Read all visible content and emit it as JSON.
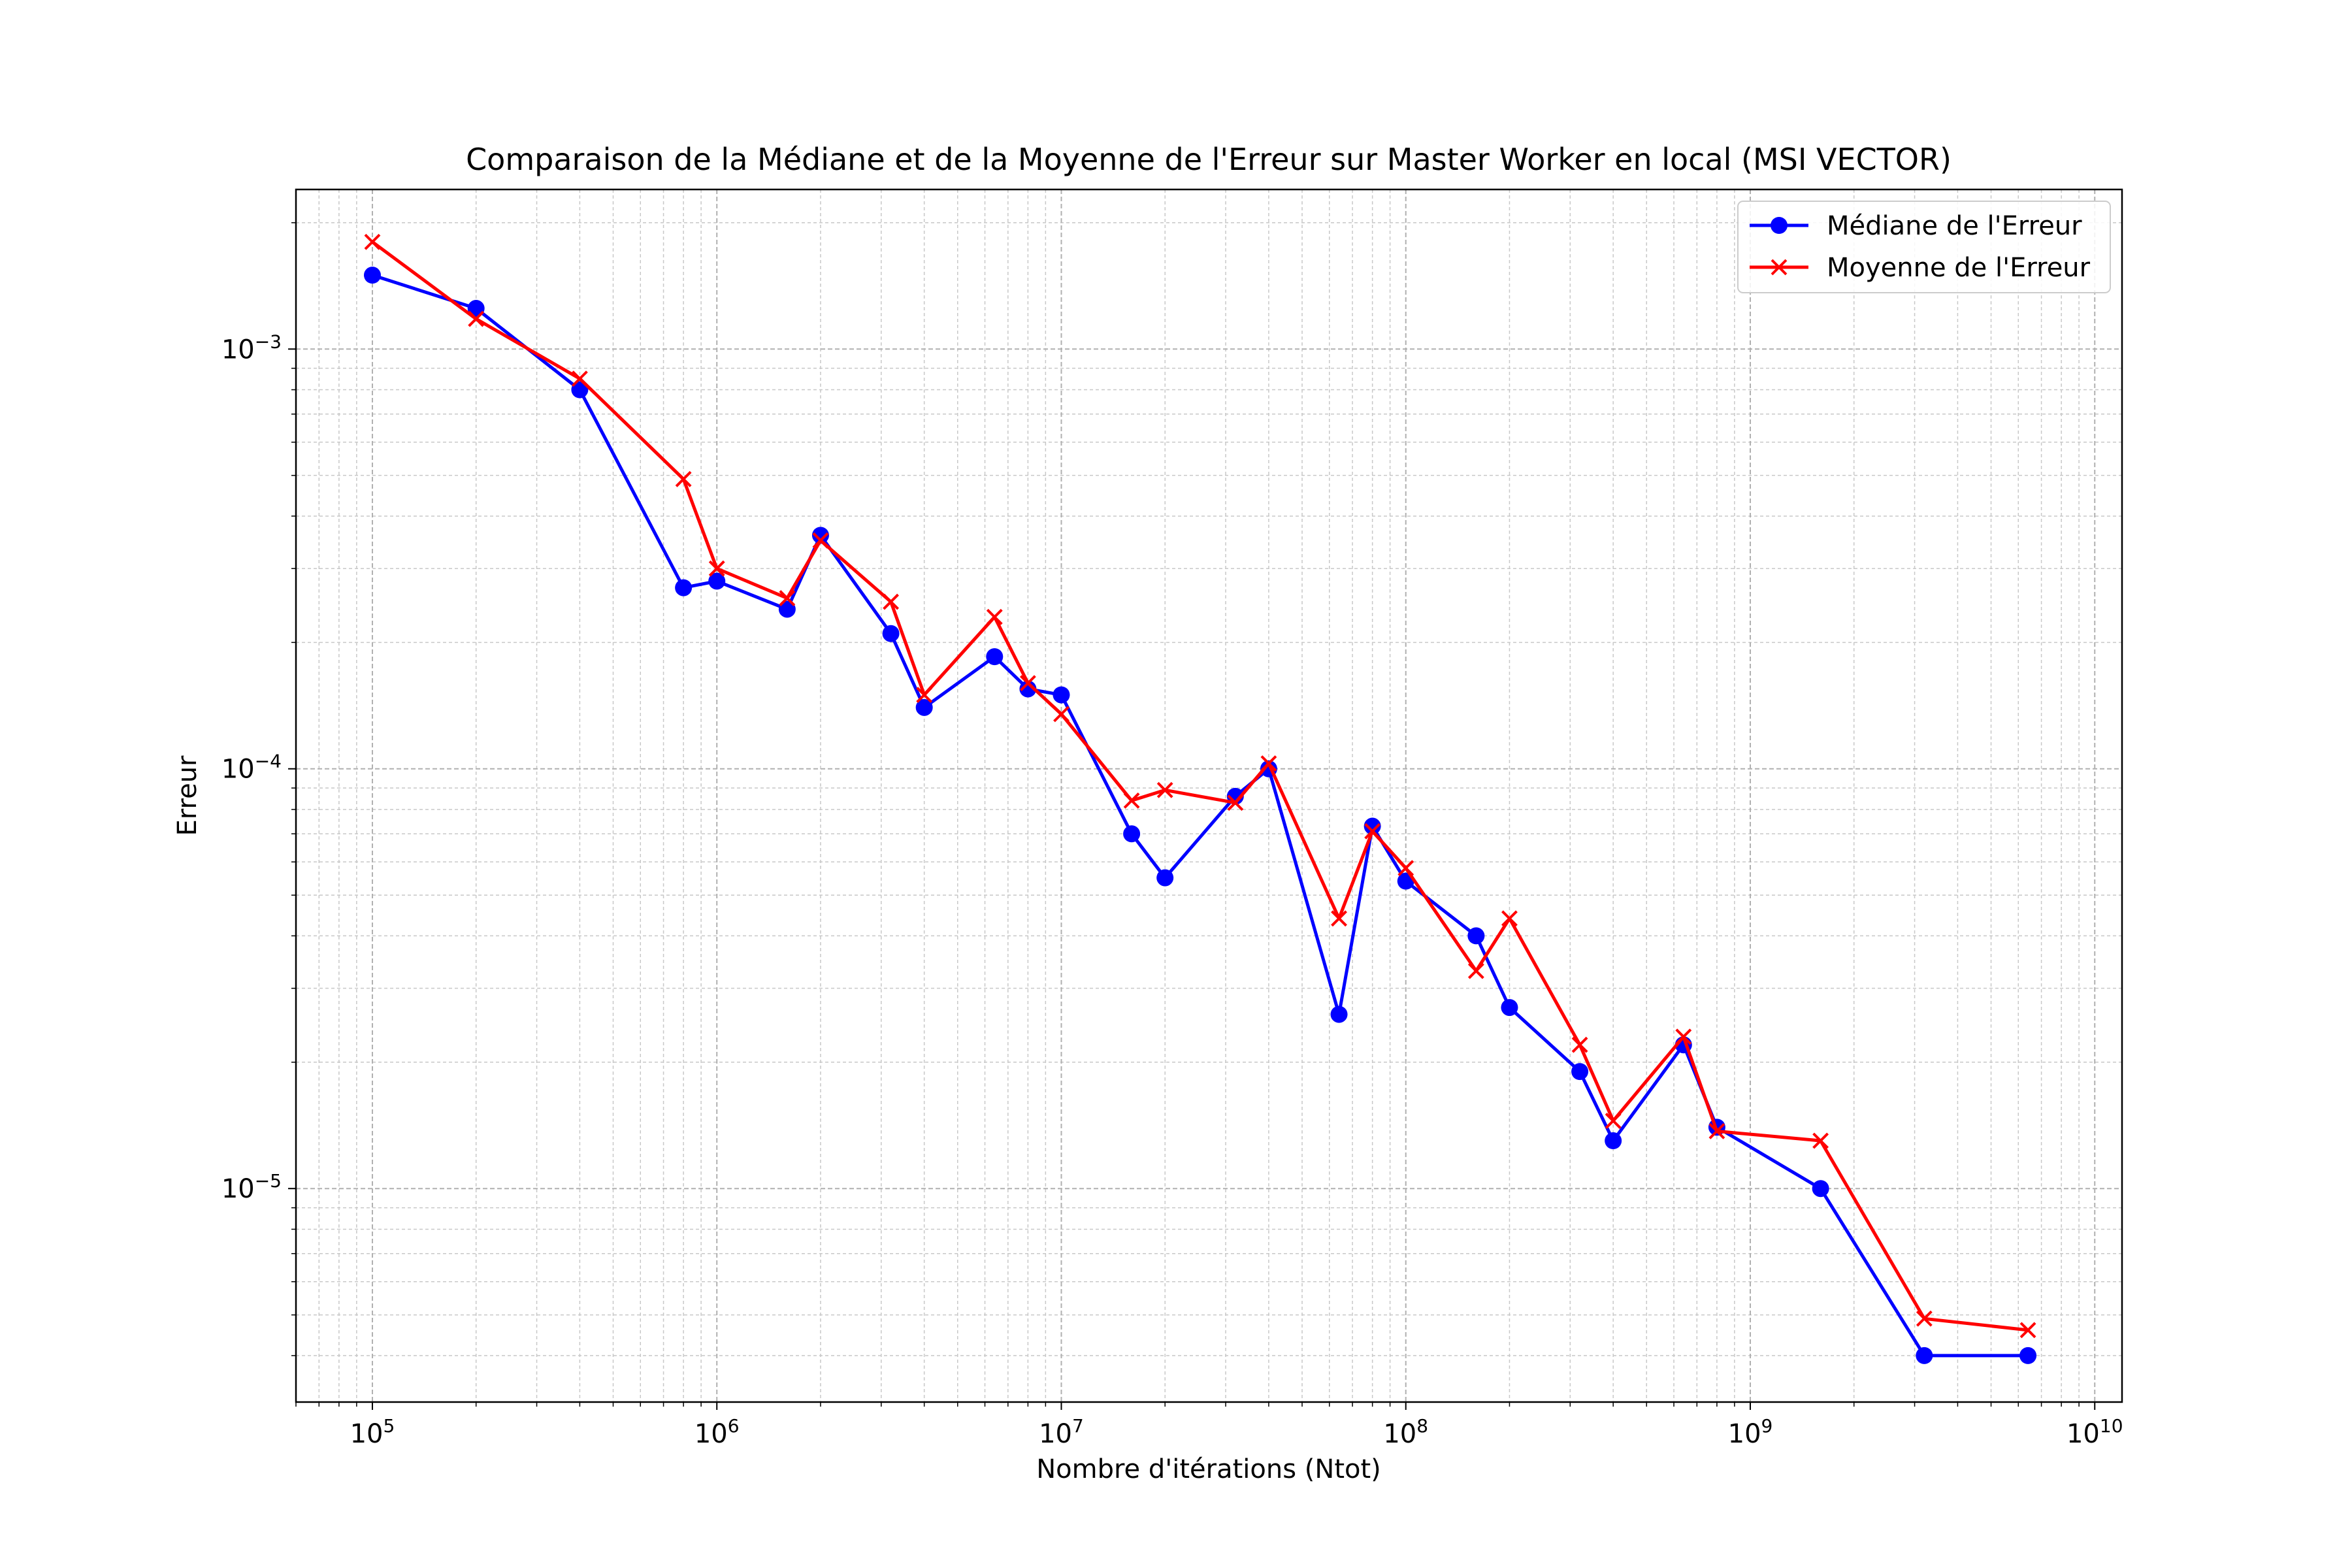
{
  "chart_data": {
    "type": "line",
    "title": "Comparaison de la Médiane et de la Moyenne de l'Erreur sur Master Worker en local (MSI VECTOR)",
    "xlabel": "Nombre d'itérations (Ntot)",
    "ylabel": "Erreur",
    "xscale": "log",
    "yscale": "log",
    "grid": true,
    "legend_position": "top-right",
    "xlim": [
      60000,
      12000000000
    ],
    "ylim": [
      3.1e-06,
      0.0024
    ],
    "x_ticks": [
      {
        "value": 100000,
        "base": "10",
        "exp": "5"
      },
      {
        "value": 1000000,
        "base": "10",
        "exp": "6"
      },
      {
        "value": 10000000,
        "base": "10",
        "exp": "7"
      },
      {
        "value": 100000000,
        "base": "10",
        "exp": "8"
      },
      {
        "value": 1000000000,
        "base": "10",
        "exp": "9"
      },
      {
        "value": 10000000000,
        "base": "10",
        "exp": "10"
      }
    ],
    "y_ticks": [
      {
        "value": 1e-05,
        "base": "10",
        "exp": "−5"
      },
      {
        "value": 0.0001,
        "base": "10",
        "exp": "−4"
      },
      {
        "value": 0.001,
        "base": "10",
        "exp": "−3"
      }
    ],
    "x": [
      100000,
      200000,
      400000,
      800000,
      1000000,
      1600000,
      2000000,
      3200000,
      4000000,
      6400000,
      8000000,
      10000000,
      16000000,
      20000000,
      32000000,
      40000000,
      64000000,
      80000000,
      100000000,
      160000000,
      200000000,
      320000000,
      400000000,
      640000000,
      800000000,
      1600000000,
      3200000000,
      6400000000
    ],
    "series": [
      {
        "name": "Médiane de l'Erreur",
        "color": "#0000ff",
        "marker": "circle",
        "values": [
          0.0015,
          0.00125,
          0.0008,
          0.00027,
          0.00028,
          0.00024,
          0.00036,
          0.00021,
          0.00014,
          0.000185,
          0.000155,
          0.00015,
          7e-05,
          5.5e-05,
          8.6e-05,
          0.0001,
          2.6e-05,
          7.3e-05,
          5.4e-05,
          4e-05,
          2.7e-05,
          1.9e-05,
          1.3e-05,
          2.2e-05,
          1.4e-05,
          1e-05,
          4e-06,
          4e-06
        ]
      },
      {
        "name": "Moyenne de l'Erreur",
        "color": "#ff0000",
        "marker": "x",
        "values": [
          0.0018,
          0.00118,
          0.00085,
          0.00049,
          0.0003,
          0.000255,
          0.00035,
          0.00025,
          0.00015,
          0.00023,
          0.00016,
          0.000135,
          8.4e-05,
          8.9e-05,
          8.3e-05,
          0.000103,
          4.4e-05,
          7.1e-05,
          5.8e-05,
          3.3e-05,
          4.4e-05,
          2.2e-05,
          1.45e-05,
          2.3e-05,
          1.37e-05,
          1.3e-05,
          4.9e-06,
          4.6e-06
        ]
      }
    ]
  }
}
